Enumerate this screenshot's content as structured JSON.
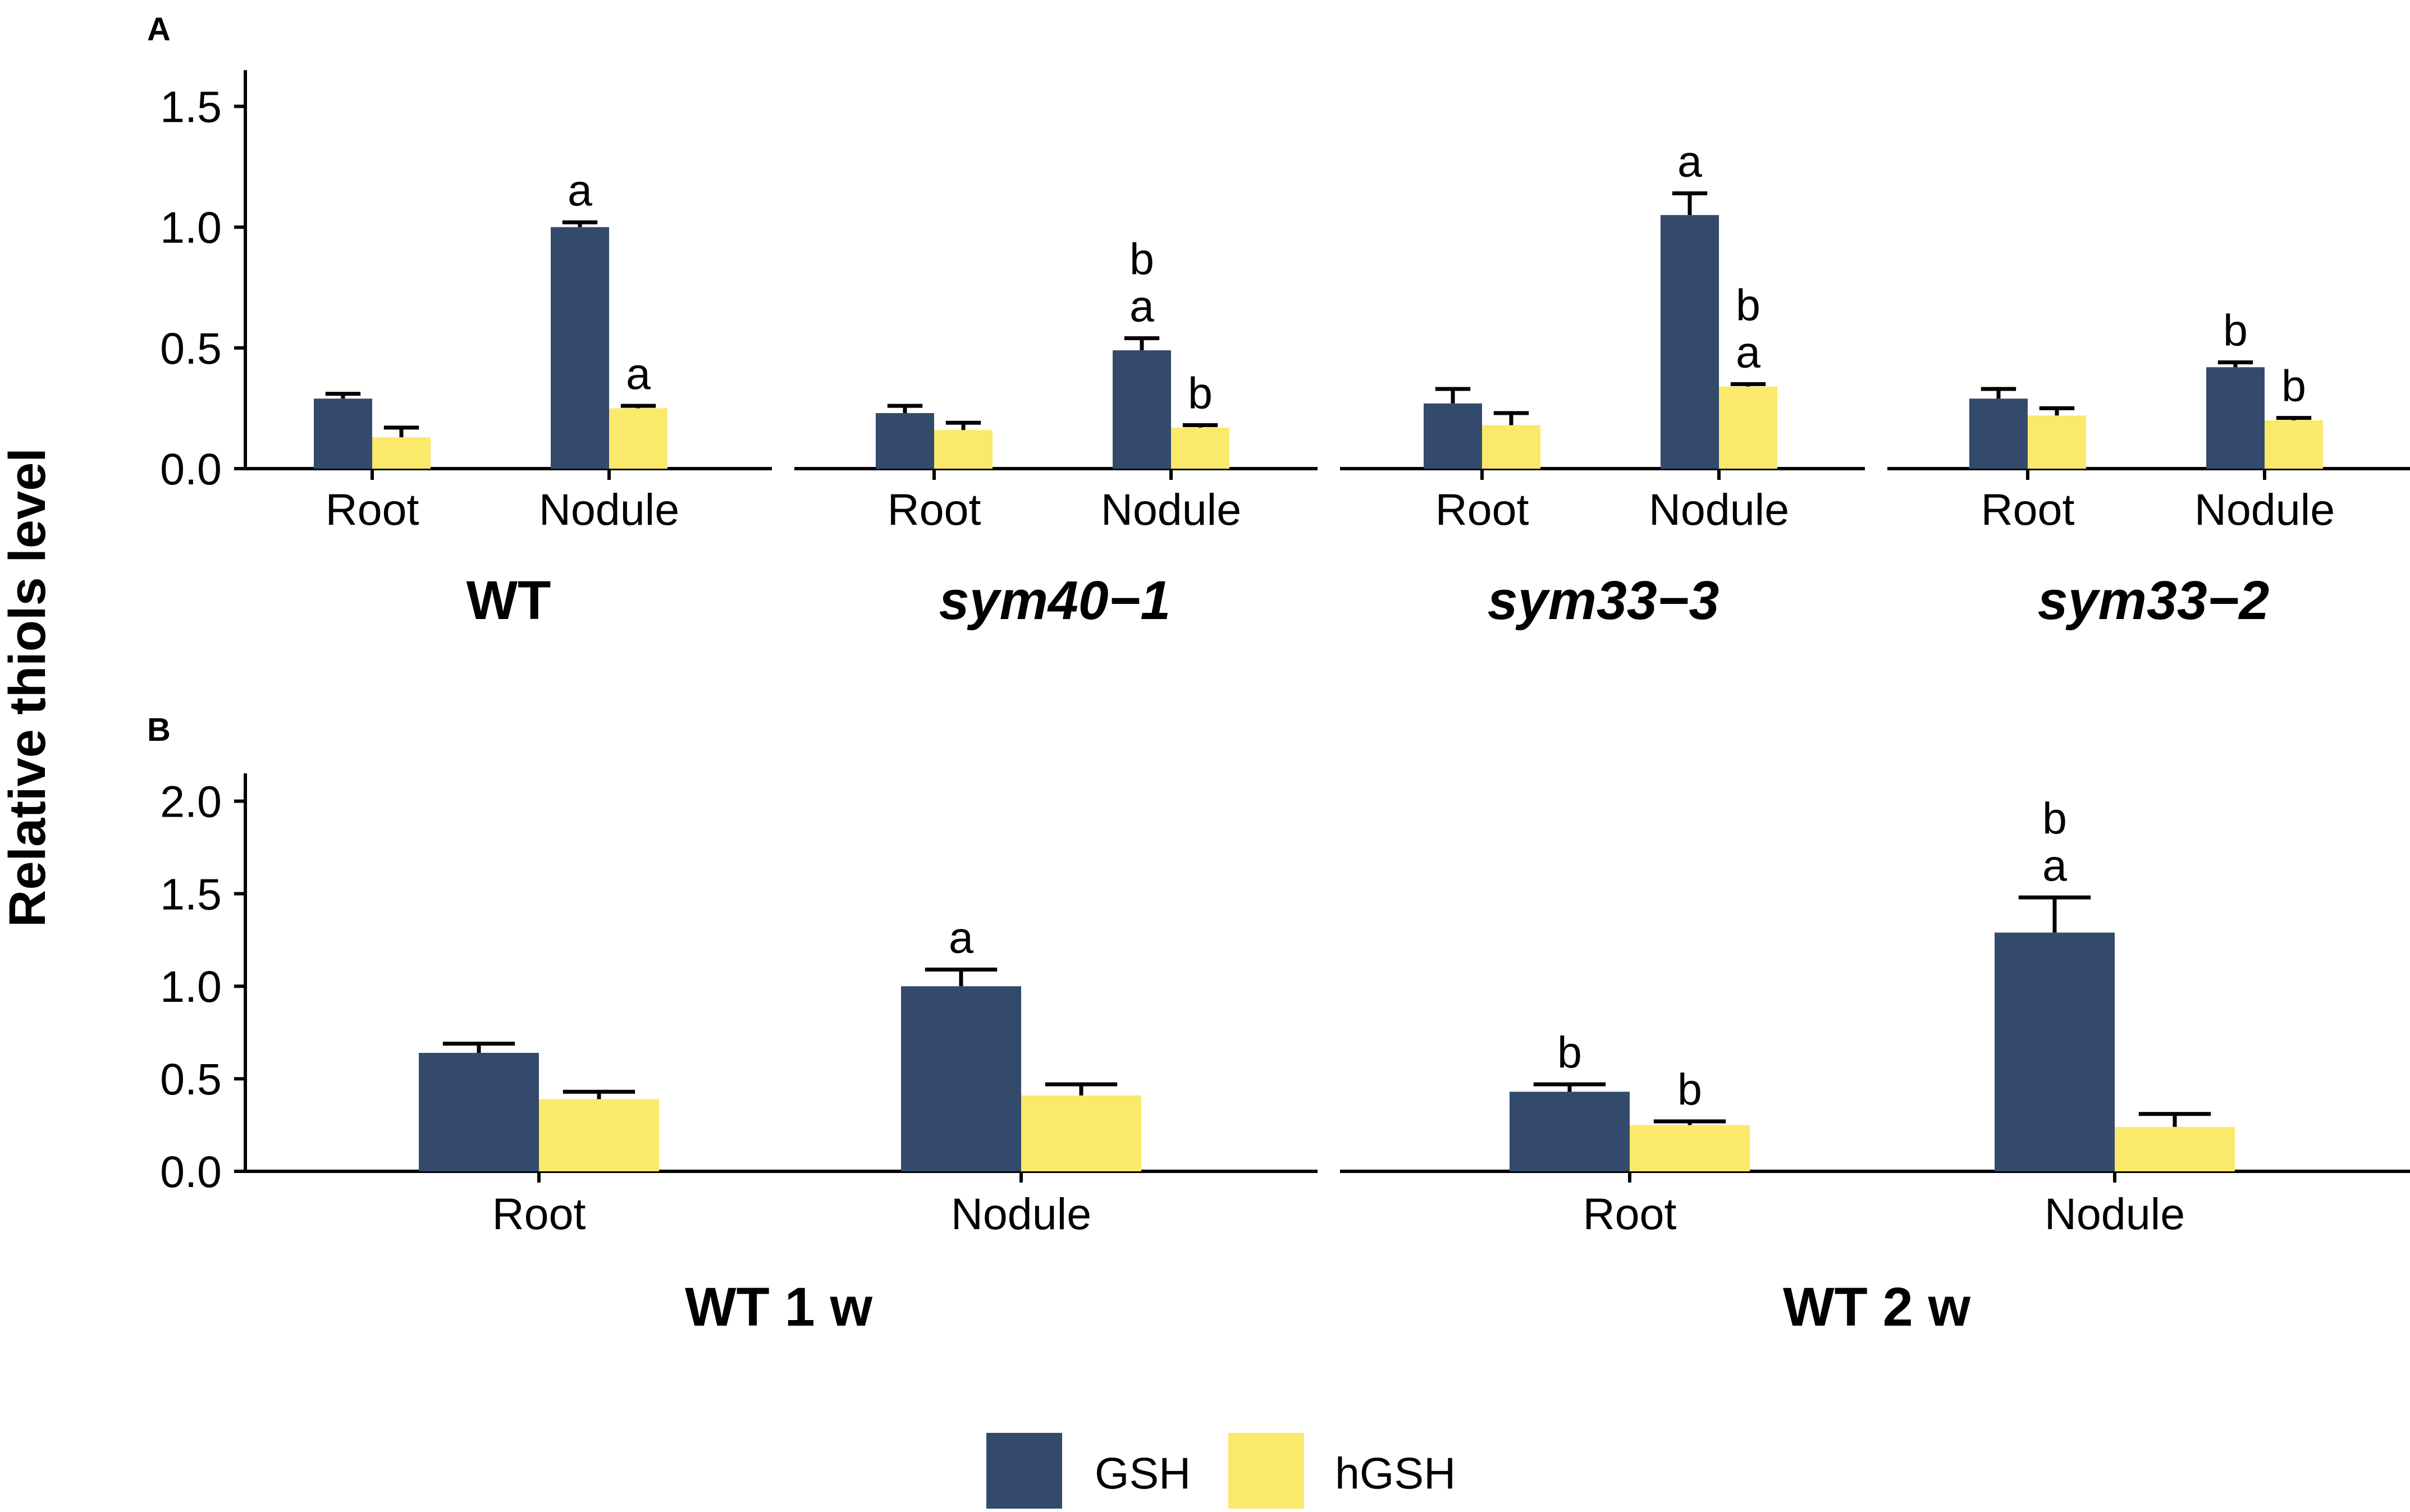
{
  "figure": {
    "ylabel": "Relative thiols level",
    "legend": [
      {
        "name": "GSH",
        "color": "#344a6d"
      },
      {
        "name": "hGSH",
        "color": "#fbe96b"
      }
    ]
  },
  "chart_data": [
    {
      "type": "bar",
      "panel": "A",
      "ylabel": "Relative thiols level",
      "ylim": [
        0,
        1.65
      ],
      "yticks": [
        "0.0",
        "0.5",
        "1.0",
        "1.5"
      ],
      "ytick_values": [
        0,
        0.5,
        1.0,
        1.5
      ],
      "series_names": [
        "GSH",
        "hGSH"
      ],
      "facets": [
        {
          "label": "WT",
          "italic": false,
          "categories": [
            "Root",
            "Nodule"
          ],
          "series": [
            {
              "name": "GSH",
              "values": [
                0.29,
                1.0
              ],
              "errors": [
                0.02,
                0.02
              ],
              "letters": [
                [],
                [
                  "a"
                ]
              ]
            },
            {
              "name": "hGSH",
              "values": [
                0.13,
                0.25
              ],
              "errors": [
                0.04,
                0.01
              ],
              "letters": [
                [],
                [
                  "a"
                ]
              ]
            }
          ]
        },
        {
          "label": "sym40−1",
          "italic": true,
          "categories": [
            "Root",
            "Nodule"
          ],
          "series": [
            {
              "name": "GSH",
              "values": [
                0.23,
                0.49
              ],
              "errors": [
                0.03,
                0.05
              ],
              "letters": [
                [],
                [
                  "b",
                  "a"
                ]
              ]
            },
            {
              "name": "hGSH",
              "values": [
                0.16,
                0.17
              ],
              "errors": [
                0.03,
                0.01
              ],
              "letters": [
                [],
                [
                  "b"
                ]
              ]
            }
          ]
        },
        {
          "label": "sym33−3",
          "italic": true,
          "categories": [
            "Root",
            "Nodule"
          ],
          "series": [
            {
              "name": "GSH",
              "values": [
                0.27,
                1.05
              ],
              "errors": [
                0.06,
                0.09
              ],
              "letters": [
                [],
                [
                  "a"
                ]
              ]
            },
            {
              "name": "hGSH",
              "values": [
                0.18,
                0.34
              ],
              "errors": [
                0.05,
                0.01
              ],
              "letters": [
                [],
                [
                  "b",
                  "a"
                ]
              ]
            }
          ]
        },
        {
          "label": "sym33−2",
          "italic": true,
          "categories": [
            "Root",
            "Nodule"
          ],
          "series": [
            {
              "name": "GSH",
              "values": [
                0.29,
                0.42
              ],
              "errors": [
                0.04,
                0.02
              ],
              "letters": [
                [],
                [
                  "b"
                ]
              ]
            },
            {
              "name": "hGSH",
              "values": [
                0.22,
                0.2
              ],
              "errors": [
                0.03,
                0.01
              ],
              "letters": [
                [],
                [
                  "b"
                ]
              ]
            }
          ]
        }
      ]
    },
    {
      "type": "bar",
      "panel": "B",
      "ylabel": "Relative thiols level",
      "ylim": [
        0,
        2.15
      ],
      "yticks": [
        "0.0",
        "0.5",
        "1.0",
        "1.5",
        "2.0"
      ],
      "ytick_values": [
        0,
        0.5,
        1.0,
        1.5,
        2.0
      ],
      "series_names": [
        "GSH",
        "hGSH"
      ],
      "facets": [
        {
          "label": "WT 1 w",
          "italic": false,
          "categories": [
            "Root",
            "Nodule"
          ],
          "series": [
            {
              "name": "GSH",
              "values": [
                0.64,
                1.0
              ],
              "errors": [
                0.05,
                0.09
              ],
              "letters": [
                [],
                [
                  "a"
                ]
              ]
            },
            {
              "name": "hGSH",
              "values": [
                0.39,
                0.41
              ],
              "errors": [
                0.04,
                0.06
              ],
              "letters": [
                [],
                []
              ]
            }
          ]
        },
        {
          "label": "WT 2 w",
          "italic": false,
          "categories": [
            "Root",
            "Nodule"
          ],
          "series": [
            {
              "name": "GSH",
              "values": [
                0.43,
                1.29
              ],
              "errors": [
                0.04,
                0.19
              ],
              "letters": [
                [
                  "b"
                ],
                [
                  "b",
                  "a"
                ]
              ]
            },
            {
              "name": "hGSH",
              "values": [
                0.25,
                0.24
              ],
              "errors": [
                0.02,
                0.07
              ],
              "letters": [
                [
                  "b"
                ],
                []
              ]
            }
          ]
        }
      ]
    }
  ]
}
